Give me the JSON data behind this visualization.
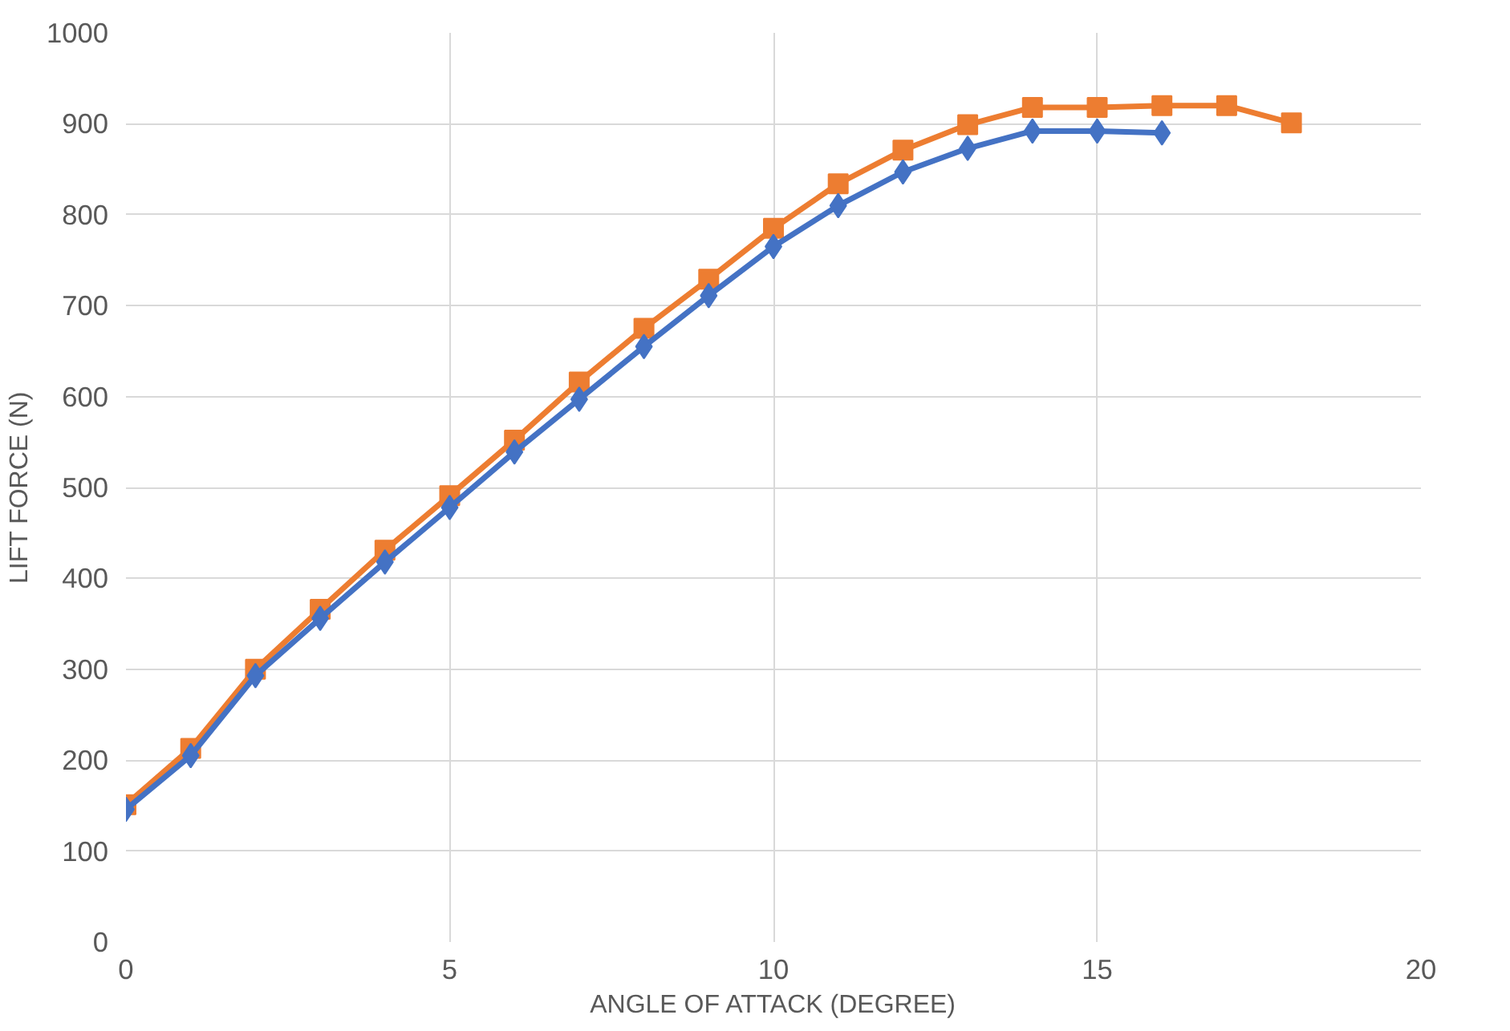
{
  "chart_data": {
    "type": "line",
    "xlabel": "ANGLE OF ATTACK (DEGREE)",
    "ylabel": "LIFT FORCE (N)",
    "xlim": [
      0,
      20
    ],
    "xticks": [
      0,
      5,
      10,
      15,
      20
    ],
    "ylim": [
      0,
      1000
    ],
    "yticks": [
      0,
      100,
      200,
      300,
      400,
      500,
      600,
      700,
      800,
      900,
      1000
    ],
    "grid": true,
    "line_style": "solid",
    "series": [
      {
        "color": "#ed7d31",
        "marker": "square",
        "x": [
          0,
          1,
          2,
          3,
          4,
          5,
          6,
          7,
          8,
          9,
          10,
          11,
          12,
          13,
          14,
          15,
          16,
          17,
          18
        ],
        "values": [
          151,
          213,
          300,
          366,
          431,
          491,
          552,
          616,
          675,
          729,
          785,
          834,
          871,
          899,
          918,
          918,
          920,
          920,
          901
        ]
      },
      {
        "color": "#4472c4",
        "marker": "diamond",
        "x": [
          0,
          1,
          2,
          3,
          4,
          5,
          6,
          7,
          8,
          9,
          10,
          11,
          12,
          13,
          14,
          15,
          16
        ],
        "values": [
          146,
          205,
          293,
          356,
          418,
          478,
          539,
          597,
          655,
          711,
          765,
          810,
          847,
          873,
          892,
          892,
          890
        ]
      }
    ]
  }
}
